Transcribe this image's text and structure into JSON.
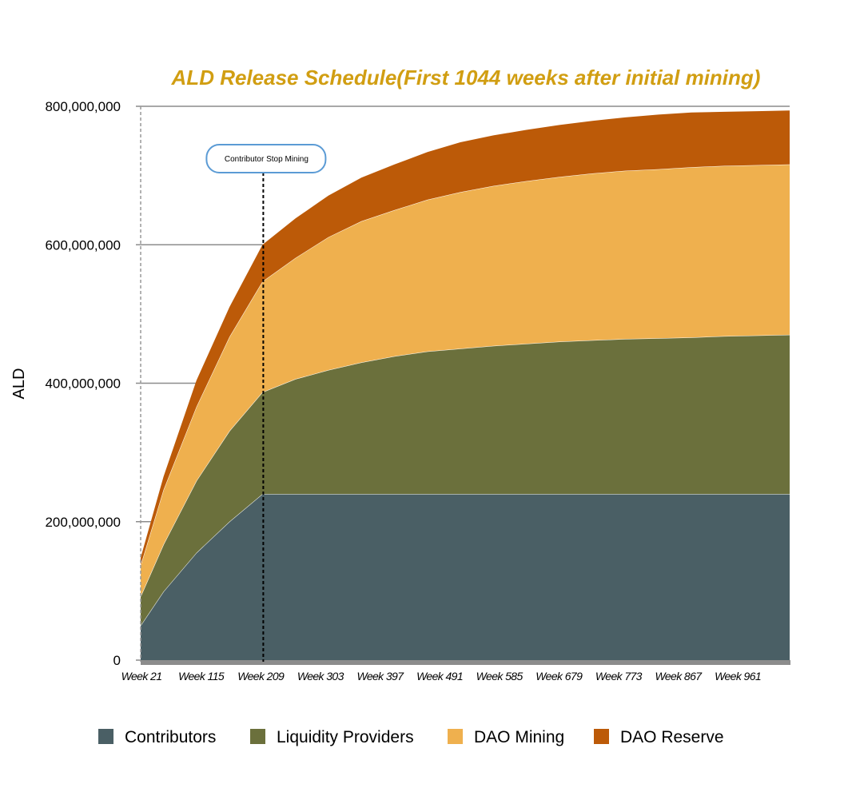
{
  "chart_data": {
    "type": "area",
    "stacked": true,
    "title": "ALD Release Schedule(First 1044 weeks after initial mining)",
    "xlabel": "",
    "ylabel": "ALD",
    "ylim": [
      0,
      800000000
    ],
    "yticks": [
      0,
      200000000,
      400000000,
      600000000,
      800000000
    ],
    "ytick_labels": [
      "0",
      "200,000,000",
      "400,000,000",
      "600,000,000",
      "800,000,000"
    ],
    "xlim": [
      21,
      1044
    ],
    "xtick_weeks": [
      21,
      115,
      209,
      303,
      397,
      491,
      585,
      679,
      773,
      867,
      961
    ],
    "xtick_labels": [
      "Week 21",
      "Week 115",
      "Week 209",
      "Week 303",
      "Week 397",
      "Week 491",
      "Week 585",
      "Week 679",
      "Week 773",
      "Week 867",
      "Week 961"
    ],
    "x": [
      21,
      57,
      109,
      161,
      213,
      265,
      317,
      369,
      421,
      473,
      525,
      577,
      629,
      681,
      733,
      785,
      837,
      889,
      941,
      993,
      1044
    ],
    "series": [
      {
        "name": "Contributors",
        "color": "#4A5F65",
        "values": [
          50000000,
          99000000,
          155000000,
          200000000,
          240000000,
          240000000,
          240000000,
          240000000,
          240000000,
          240000000,
          240000000,
          240000000,
          240000000,
          240000000,
          240000000,
          240000000,
          240000000,
          240000000,
          240000000,
          240000000,
          240000000
        ]
      },
      {
        "name": "Liquidity Providers",
        "color": "#6B703C",
        "values": [
          42000000,
          68000000,
          104000000,
          131000000,
          147000000,
          166000000,
          179000000,
          190000000,
          199000000,
          206000000,
          210000000,
          214000000,
          217000000,
          220000000,
          222000000,
          224000000,
          225000000,
          226000000,
          228000000,
          229000000,
          230000000
        ]
      },
      {
        "name": "DAO Mining",
        "color": "#EFB04E",
        "values": [
          45000000,
          79000000,
          107000000,
          136000000,
          160000000,
          175000000,
          192000000,
          204000000,
          211000000,
          219000000,
          226000000,
          231000000,
          235000000,
          238000000,
          241000000,
          243000000,
          244000000,
          246000000,
          246000000,
          246000000,
          246000000
        ]
      },
      {
        "name": "DAO Reserve",
        "color": "#BC5A08",
        "values": [
          11000000,
          19000000,
          38000000,
          43000000,
          53000000,
          57000000,
          60000000,
          63000000,
          66000000,
          69000000,
          72000000,
          73000000,
          74000000,
          75000000,
          76000000,
          77000000,
          79000000,
          79000000,
          78000000,
          78000000,
          78000000
        ]
      }
    ],
    "annotations": [
      {
        "text": "Contributor Stop Mining",
        "week": 213
      }
    ],
    "grid": true,
    "legend_position": "bottom"
  }
}
